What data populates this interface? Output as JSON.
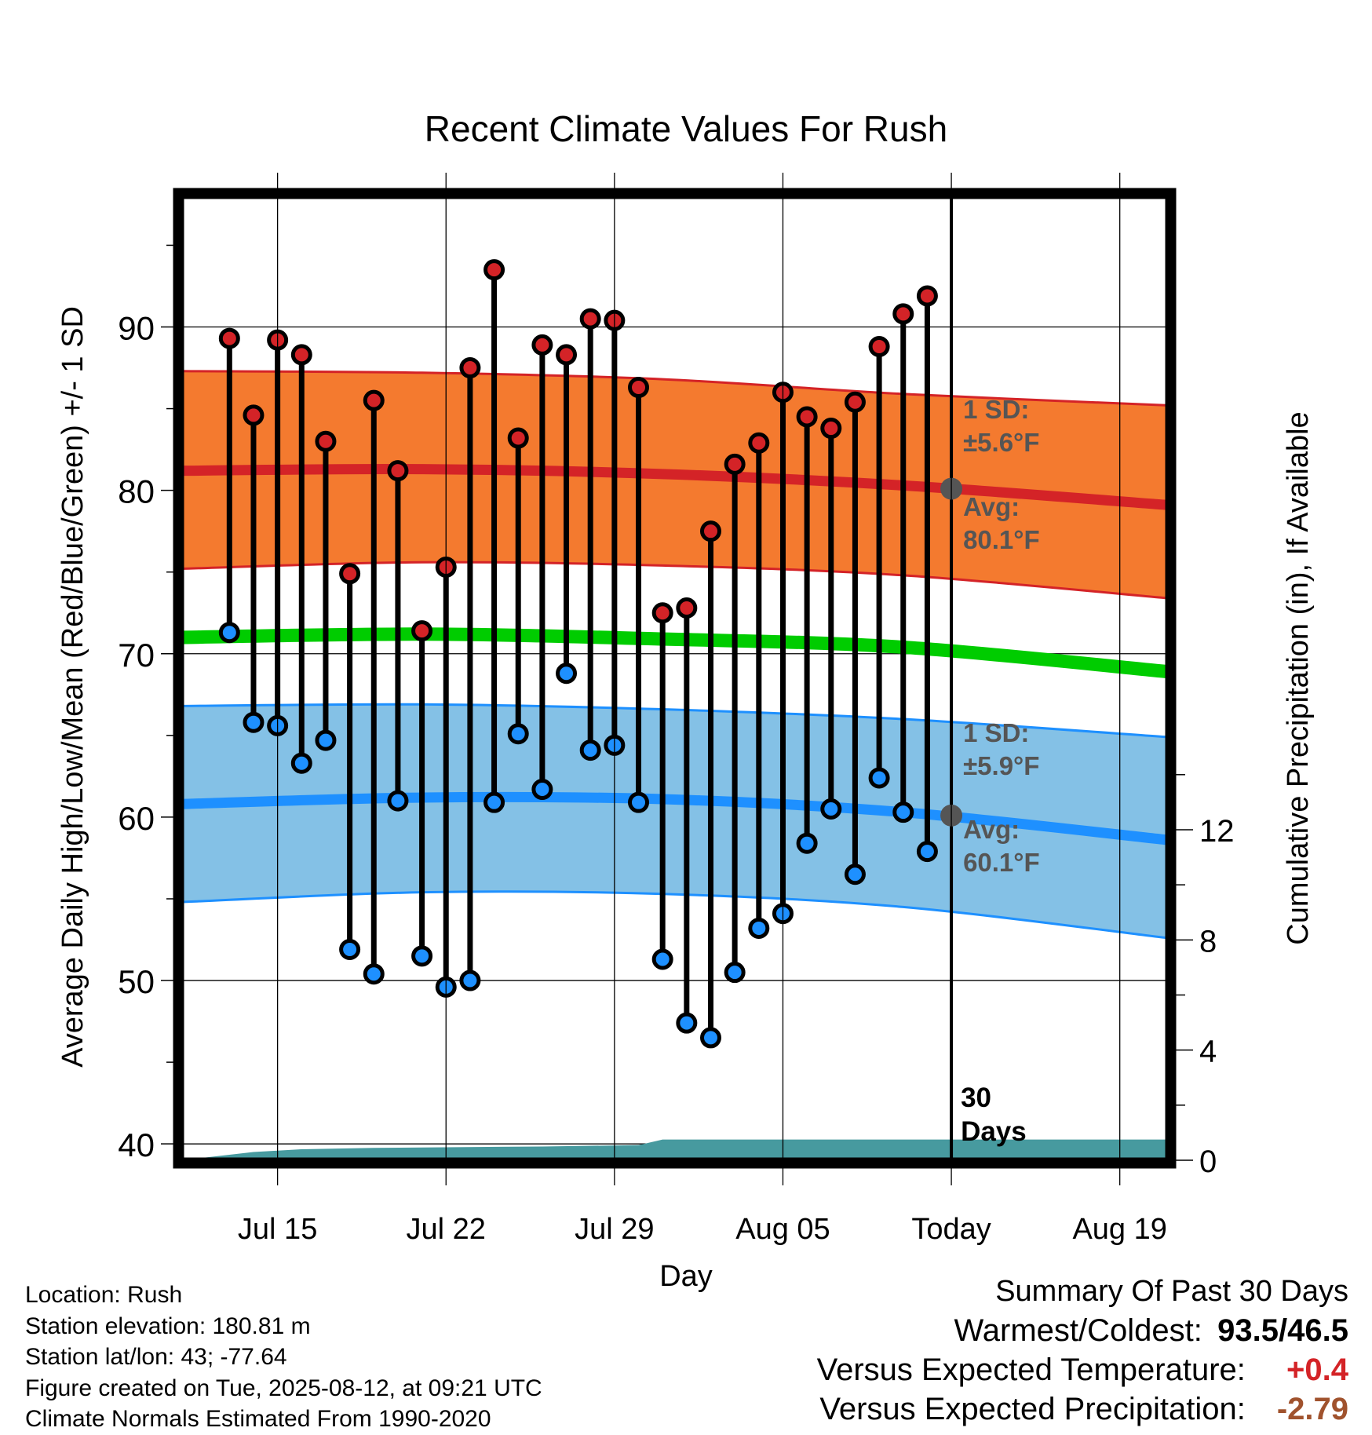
{
  "chart_data": {
    "type": "line",
    "title": "Recent Climate Values For Rush",
    "xlabel": "Day",
    "ylabel": "Average Daily High/Low/Mean (Red/Blue/Green) +/- 1 SD",
    "y2label": "Cumulative Precipitation (in), If Available",
    "ylim": [
      39,
      98
    ],
    "y2lim": [
      0,
      35
    ],
    "x_tick_labels": [
      "Jul 15",
      "Jul 22",
      "Jul 29",
      "Aug 05",
      "Today",
      "Aug 19"
    ],
    "x_tick_dates": [
      "2025-07-15",
      "2025-07-22",
      "2025-07-29",
      "2025-08-05",
      "2025-08-12",
      "2025-08-19"
    ],
    "y_ticks": [
      40,
      50,
      60,
      70,
      80,
      90
    ],
    "y2_ticks": [
      0,
      4,
      8,
      12
    ],
    "xlim": [
      "2025-07-11",
      "2025-08-21"
    ],
    "today": "2025-08-12",
    "today_label": "30 Days",
    "days": [
      "2025-07-13",
      "2025-07-14",
      "2025-07-15",
      "2025-07-16",
      "2025-07-17",
      "2025-07-18",
      "2025-07-19",
      "2025-07-20",
      "2025-07-21",
      "2025-07-22",
      "2025-07-23",
      "2025-07-24",
      "2025-07-25",
      "2025-07-26",
      "2025-07-27",
      "2025-07-28",
      "2025-07-29",
      "2025-07-30",
      "2025-07-31",
      "2025-08-01",
      "2025-08-02",
      "2025-08-03",
      "2025-08-04",
      "2025-08-05",
      "2025-08-06",
      "2025-08-07",
      "2025-08-08",
      "2025-08-09",
      "2025-08-10",
      "2025-08-11"
    ],
    "highs": [
      89.3,
      84.6,
      89.2,
      88.3,
      83.0,
      74.9,
      85.5,
      81.2,
      71.4,
      75.3,
      87.5,
      93.5,
      83.2,
      88.9,
      88.3,
      90.5,
      90.4,
      86.3,
      72.5,
      72.8,
      77.5,
      81.6,
      82.9,
      86.0,
      84.5,
      83.8,
      85.4,
      88.8,
      90.8,
      91.9
    ],
    "lows": [
      71.3,
      65.8,
      65.6,
      63.3,
      64.7,
      51.9,
      50.4,
      61.0,
      51.5,
      49.6,
      50.0,
      60.9,
      65.1,
      61.7,
      68.8,
      64.1,
      64.4,
      60.9,
      51.3,
      47.4,
      46.5,
      50.5,
      53.2,
      54.1,
      58.4,
      60.5,
      56.5,
      62.4,
      60.3,
      57.9
    ],
    "normal_dates": [
      "2025-07-11",
      "2025-07-21",
      "2025-07-31",
      "2025-08-10",
      "2025-08-21"
    ],
    "normal_high": [
      81.2,
      81.3,
      81.0,
      80.3,
      79.1
    ],
    "normal_high_upper": [
      87.3,
      87.2,
      86.8,
      85.9,
      85.2
    ],
    "normal_high_lower": [
      75.2,
      75.6,
      75.4,
      74.8,
      73.4
    ],
    "normal_mean": [
      71.0,
      71.2,
      70.9,
      70.4,
      68.9
    ],
    "normal_low": [
      60.8,
      61.2,
      61.1,
      60.3,
      58.6
    ],
    "normal_low_upper": [
      66.8,
      66.9,
      66.6,
      66.0,
      64.9
    ],
    "normal_low_lower": [
      54.8,
      55.4,
      55.3,
      54.5,
      52.6
    ],
    "precip_dates": [
      "2025-07-11",
      "2025-07-14",
      "2025-07-16",
      "2025-07-19",
      "2025-07-26",
      "2025-07-30",
      "2025-07-31",
      "2025-08-21"
    ],
    "precip_cumulative": [
      0.0,
      0.3,
      0.4,
      0.45,
      0.5,
      0.55,
      0.75,
      0.75
    ],
    "annotations": {
      "high_sd_label": "1 SD:",
      "high_sd_value": "±5.6°F",
      "high_avg_label": "Avg:",
      "high_avg_value": "80.1°F",
      "low_sd_label": "1 SD:",
      "low_sd_value": "±5.9°F",
      "low_avg_label": "Avg:",
      "low_avg_value": "60.1°F",
      "high_avg_today": 80.1,
      "low_avg_today": 60.1
    },
    "colors": {
      "high_band": "#f47a2f",
      "high_line": "#d42327",
      "mean_line": "#00cc00",
      "low_band": "#84c1e6",
      "low_line": "#1e90ff",
      "precip": "#479a9f",
      "high_dot": "#d42327",
      "low_dot": "#1e90ff",
      "annotation": "#555555"
    }
  },
  "info": {
    "location": "Location: Rush",
    "elevation": "Station elevation: 180.81 m",
    "latlon": "Station lat/lon: 43; -77.64",
    "created": "Figure created on Tue, 2025-08-12, at 09:21 UTC",
    "normals": "Climate Normals Estimated From 1990-2020"
  },
  "summary": {
    "heading": "Summary Of Past 30 Days",
    "warm_label": "Warmest/Coldest:",
    "warm_value": "93.5/46.5",
    "temp_label": "Versus Expected Temperature:",
    "temp_value": "+0.4",
    "temp_color": "#d42327",
    "precip_label": "Versus Expected Precipitation:",
    "precip_value": "-2.79",
    "precip_color": "#a0522d"
  }
}
